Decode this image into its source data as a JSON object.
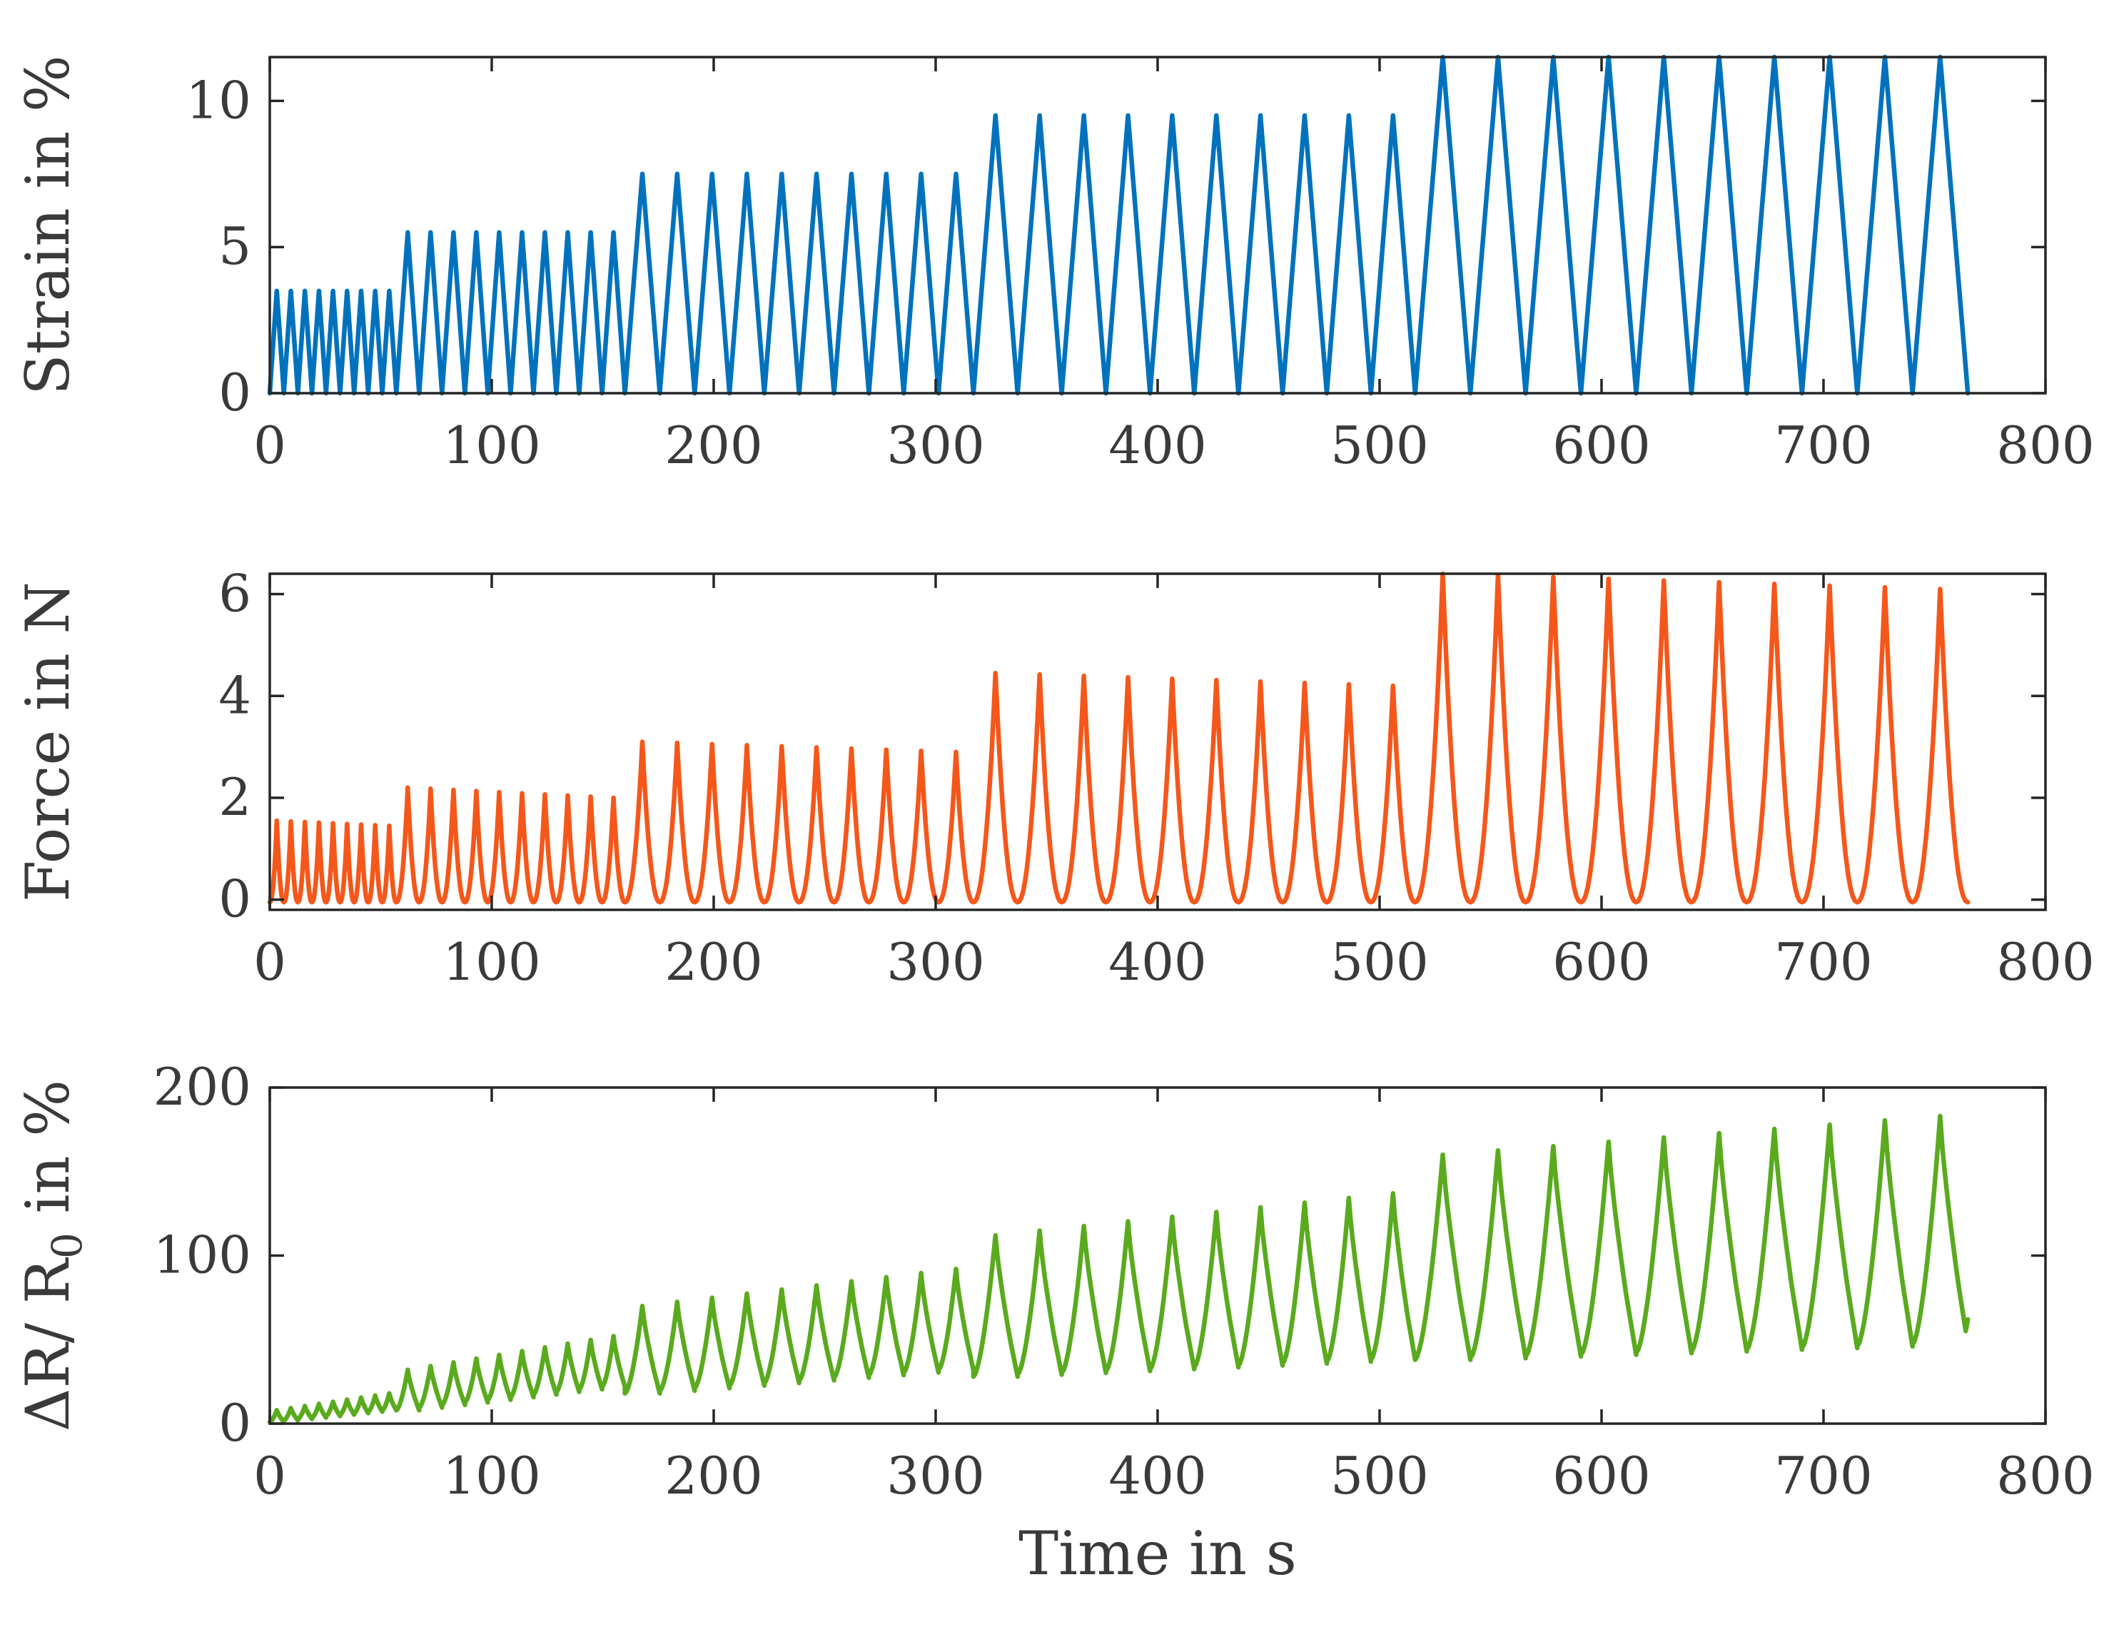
{
  "chart_data": [
    {
      "type": "line",
      "ylabel": "Strain in %",
      "xlabel": "",
      "xlim": [
        0,
        800
      ],
      "ylim": [
        0,
        11.5
      ],
      "xticks": [
        "0",
        "100",
        "200",
        "300",
        "400",
        "500",
        "600",
        "700",
        "800"
      ],
      "yticks": [
        "0",
        "5",
        "10"
      ],
      "ytick_values": [
        0,
        5,
        10
      ],
      "series": [
        {
          "name": "Strain",
          "color": "#0072BD",
          "stages": [
            {
              "start": 0,
              "end": 57,
              "cycles": 9,
              "peak": 3.5,
              "shape": "triangle"
            },
            {
              "start": 57,
              "end": 160,
              "cycles": 10,
              "peak": 5.5,
              "shape": "triangle"
            },
            {
              "start": 160,
              "end": 317,
              "cycles": 10,
              "peak": 7.5,
              "shape": "triangle"
            },
            {
              "start": 317,
              "end": 516,
              "cycles": 10,
              "peak": 9.5,
              "shape": "triangle"
            },
            {
              "start": 516,
              "end": 765,
              "cycles": 10,
              "peak": 11.5,
              "shape": "triangle"
            }
          ]
        }
      ]
    },
    {
      "type": "line",
      "ylabel": "Force in N",
      "xlabel": "",
      "xlim": [
        0,
        800
      ],
      "ylim": [
        -0.2,
        6.4
      ],
      "xticks": [
        "0",
        "100",
        "200",
        "300",
        "400",
        "500",
        "600",
        "700",
        "800"
      ],
      "yticks": [
        "0",
        "2",
        "4",
        "6"
      ],
      "ytick_values": [
        0,
        2,
        4,
        6
      ],
      "series": [
        {
          "name": "Force",
          "color": "#F5571A",
          "stages": [
            {
              "start": 0,
              "end": 57,
              "cycles": 9,
              "peak_first": 1.55,
              "peak_last": 1.45,
              "shape": "peak"
            },
            {
              "start": 57,
              "end": 160,
              "cycles": 10,
              "peak_first": 2.2,
              "peak_last": 2.0,
              "shape": "peak"
            },
            {
              "start": 160,
              "end": 317,
              "cycles": 10,
              "peak_first": 3.1,
              "peak_last": 2.9,
              "shape": "peak"
            },
            {
              "start": 317,
              "end": 516,
              "cycles": 10,
              "peak_first": 4.45,
              "peak_last": 4.2,
              "shape": "peak"
            },
            {
              "start": 516,
              "end": 765,
              "cycles": 10,
              "peak_first": 6.4,
              "peak_last": 6.1,
              "shape": "peak"
            }
          ]
        }
      ]
    },
    {
      "type": "line",
      "ylabel": "ΔR/ R",
      "ylabel_sub": "0",
      "ylabel_tail": " in %",
      "xlabel": "Time in s",
      "xlim": [
        0,
        800
      ],
      "ylim": [
        0,
        200
      ],
      "xticks": [
        "0",
        "100",
        "200",
        "300",
        "400",
        "500",
        "600",
        "700",
        "800"
      ],
      "yticks": [
        "0",
        "100",
        "200"
      ],
      "ytick_values": [
        0,
        100,
        200
      ],
      "series": [
        {
          "name": "ΔR/R0",
          "color": "#5AAA1E",
          "stages": [
            {
              "start": 0,
              "end": 57,
              "cycles": 9,
              "peak_first": 8,
              "peak_last": 18,
              "base_first": 1,
              "base_last": 8,
              "shape": "resistance"
            },
            {
              "start": 57,
              "end": 160,
              "cycles": 10,
              "peak_first": 32,
              "peak_last": 52,
              "base_first": 8,
              "base_last": 22,
              "shape": "resistance"
            },
            {
              "start": 160,
              "end": 317,
              "cycles": 10,
              "peak_first": 70,
              "peak_last": 92,
              "base_first": 18,
              "base_last": 32,
              "shape": "resistance"
            },
            {
              "start": 317,
              "end": 516,
              "cycles": 10,
              "peak_first": 112,
              "peak_last": 137,
              "base_first": 28,
              "base_last": 38,
              "shape": "resistance"
            },
            {
              "start": 516,
              "end": 765,
              "cycles": 10,
              "peak_first": 160,
              "peak_last": 183,
              "base_first": 38,
              "base_last": 47,
              "shape": "resistance"
            }
          ],
          "end_value": 62
        }
      ]
    }
  ]
}
